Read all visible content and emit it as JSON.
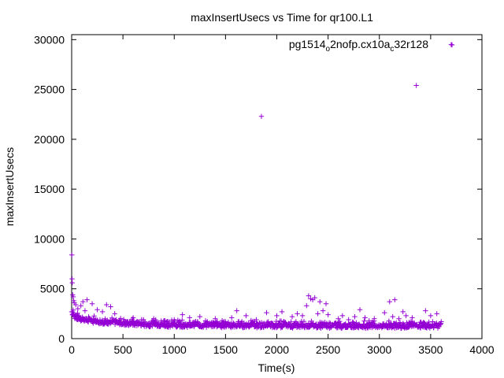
{
  "chart_data": {
    "type": "scatter",
    "title": "maxInsertUsecs vs Time for qr100.L1",
    "xlabel": "Time(s)",
    "ylabel": "maxInsertUsecs",
    "xlim": [
      0,
      4000
    ],
    "ylim": [
      0,
      30500
    ],
    "x_ticks": [
      0,
      500,
      1000,
      1500,
      2000,
      2500,
      3000,
      3500,
      4000
    ],
    "y_ticks": [
      0,
      5000,
      10000,
      15000,
      20000,
      25000,
      30000
    ],
    "grid": false,
    "legend_position": "top-right",
    "marker": "plus",
    "series": [
      {
        "name": "pg1514_o2nofp.cx10a_c32r128",
        "legend": {
          "base1": "pg1514",
          "sub1": "o",
          "mid": "2nofp.cx10a",
          "sub2": "c",
          "end": "32r128"
        },
        "color": "#9400d3",
        "baseline": {
          "x_start": 0,
          "x_end": 3600,
          "y_profile": [
            [
              0,
              2700
            ],
            [
              20,
              2300
            ],
            [
              50,
              2100
            ],
            [
              100,
              1950
            ],
            [
              200,
              1800
            ],
            [
              400,
              1600
            ],
            [
              700,
              1450
            ],
            [
              1000,
              1380
            ],
            [
              1500,
              1350
            ],
            [
              2000,
              1320
            ],
            [
              2500,
              1300
            ],
            [
              3000,
              1280
            ],
            [
              3600,
              1300
            ]
          ]
        },
        "points": [
          [
            2,
            8400
          ],
          [
            4,
            6000
          ],
          [
            6,
            5600
          ],
          [
            10,
            4400
          ],
          [
            15,
            4200
          ],
          [
            20,
            3800
          ],
          [
            25,
            3600
          ],
          [
            40,
            3400
          ],
          [
            60,
            3000
          ],
          [
            90,
            3300
          ],
          [
            110,
            3700
          ],
          [
            130,
            2800
          ],
          [
            150,
            3900
          ],
          [
            200,
            3500
          ],
          [
            250,
            2900
          ],
          [
            300,
            2700
          ],
          [
            340,
            3400
          ],
          [
            380,
            3200
          ],
          [
            420,
            2500
          ],
          [
            600,
            2100
          ],
          [
            700,
            1900
          ],
          [
            800,
            2000
          ],
          [
            900,
            1800
          ],
          [
            1000,
            1900
          ],
          [
            1080,
            2400
          ],
          [
            1150,
            2100
          ],
          [
            1250,
            2200
          ],
          [
            1400,
            2000
          ],
          [
            1500,
            1700
          ],
          [
            1560,
            2100
          ],
          [
            1610,
            2800
          ],
          [
            1700,
            2300
          ],
          [
            1800,
            1900
          ],
          [
            1850,
            22300
          ],
          [
            1900,
            2600
          ],
          [
            2000,
            2300
          ],
          [
            2050,
            2700
          ],
          [
            2150,
            2200
          ],
          [
            2200,
            2500
          ],
          [
            2250,
            2300
          ],
          [
            2290,
            3300
          ],
          [
            2310,
            4300
          ],
          [
            2330,
            4000
          ],
          [
            2350,
            3900
          ],
          [
            2370,
            4100
          ],
          [
            2400,
            2500
          ],
          [
            2420,
            3700
          ],
          [
            2450,
            2800
          ],
          [
            2480,
            3500
          ],
          [
            2500,
            2400
          ],
          [
            2600,
            2000
          ],
          [
            2640,
            2300
          ],
          [
            2700,
            1900
          ],
          [
            2760,
            2200
          ],
          [
            2810,
            2900
          ],
          [
            2860,
            2100
          ],
          [
            2900,
            1800
          ],
          [
            2950,
            2000
          ],
          [
            3050,
            2600
          ],
          [
            3100,
            3700
          ],
          [
            3130,
            2200
          ],
          [
            3150,
            3900
          ],
          [
            3190,
            2000
          ],
          [
            3230,
            2700
          ],
          [
            3260,
            2300
          ],
          [
            3320,
            2100
          ],
          [
            3360,
            25400
          ],
          [
            3450,
            2800
          ],
          [
            3500,
            2300
          ],
          [
            3560,
            2500
          ],
          [
            3700,
            29500
          ]
        ]
      }
    ]
  }
}
